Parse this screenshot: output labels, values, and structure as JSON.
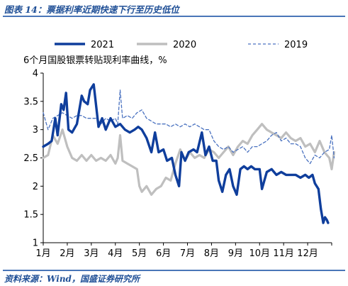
{
  "figure": {
    "title": "图表 14：票据利率近期快速下行至历史低位",
    "source": "资料来源：Wind，国盛证券研究所"
  },
  "chart_data": {
    "type": "line",
    "ylabel": "6个月国股银票转贴现利率曲线，%",
    "ylim": [
      1,
      4
    ],
    "yticks": [
      "4",
      "3.5",
      "3",
      "2.5",
      "2",
      "1.5",
      "1"
    ],
    "xlabels": [
      "1月",
      "2月",
      "3月",
      "4月",
      "5月",
      "6月",
      "7月",
      "8月",
      "9月",
      "10月",
      "11月",
      "12月"
    ],
    "legend_position": "top",
    "grid": false,
    "series": [
      {
        "name": "2021",
        "color": "#0f3e9c",
        "style": "solid-thick",
        "points": [
          [
            0,
            2.7
          ],
          [
            0.2,
            2.75
          ],
          [
            0.35,
            2.8
          ],
          [
            0.5,
            3.2
          ],
          [
            0.6,
            2.9
          ],
          [
            0.75,
            3.45
          ],
          [
            0.85,
            3.35
          ],
          [
            0.95,
            3.65
          ],
          [
            1.05,
            3.0
          ],
          [
            1.2,
            2.95
          ],
          [
            1.4,
            3.1
          ],
          [
            1.6,
            3.6
          ],
          [
            1.7,
            3.5
          ],
          [
            1.85,
            3.45
          ],
          [
            1.95,
            3.7
          ],
          [
            2.1,
            3.8
          ],
          [
            2.3,
            3.05
          ],
          [
            2.45,
            3.2
          ],
          [
            2.6,
            3.0
          ],
          [
            2.8,
            3.2
          ],
          [
            3.0,
            3.05
          ],
          [
            3.2,
            3.1
          ],
          [
            3.4,
            3.0
          ],
          [
            3.6,
            2.95
          ],
          [
            3.8,
            3.0
          ],
          [
            3.95,
            3.05
          ],
          [
            4.1,
            3.0
          ],
          [
            4.3,
            2.85
          ],
          [
            4.5,
            2.6
          ],
          [
            4.65,
            2.95
          ],
          [
            4.8,
            2.6
          ],
          [
            5.0,
            2.65
          ],
          [
            5.15,
            2.45
          ],
          [
            5.35,
            2.5
          ],
          [
            5.5,
            2.2
          ],
          [
            5.65,
            2.0
          ],
          [
            5.75,
            2.6
          ],
          [
            5.9,
            2.45
          ],
          [
            6.05,
            2.6
          ],
          [
            6.25,
            2.65
          ],
          [
            6.4,
            2.6
          ],
          [
            6.6,
            2.95
          ],
          [
            6.75,
            2.55
          ],
          [
            6.9,
            2.7
          ],
          [
            7.05,
            2.45
          ],
          [
            7.2,
            2.45
          ],
          [
            7.3,
            2.1
          ],
          [
            7.45,
            1.9
          ],
          [
            7.6,
            2.2
          ],
          [
            7.75,
            2.3
          ],
          [
            7.9,
            2.0
          ],
          [
            8.05,
            1.85
          ],
          [
            8.2,
            2.3
          ],
          [
            8.35,
            2.35
          ],
          [
            8.5,
            2.3
          ],
          [
            8.65,
            2.35
          ],
          [
            8.8,
            2.3
          ],
          [
            9.0,
            2.3
          ],
          [
            9.1,
            1.95
          ],
          [
            9.3,
            2.25
          ],
          [
            9.5,
            2.3
          ],
          [
            9.7,
            2.2
          ],
          [
            9.9,
            2.25
          ],
          [
            10.1,
            2.2
          ],
          [
            10.3,
            2.2
          ],
          [
            10.5,
            2.2
          ],
          [
            10.7,
            2.15
          ],
          [
            10.9,
            2.2
          ],
          [
            11.05,
            2.15
          ],
          [
            11.2,
            2.2
          ],
          [
            11.3,
            2.05
          ],
          [
            11.45,
            1.95
          ],
          [
            11.55,
            1.6
          ],
          [
            11.65,
            1.35
          ],
          [
            11.72,
            1.45
          ],
          [
            11.8,
            1.4
          ],
          [
            11.85,
            1.35
          ]
        ]
      },
      {
        "name": "2020",
        "color": "#bfbfbf",
        "style": "solid",
        "points": [
          [
            0,
            2.5
          ],
          [
            0.2,
            2.55
          ],
          [
            0.4,
            2.9
          ],
          [
            0.6,
            2.75
          ],
          [
            0.8,
            3.0
          ],
          [
            1.0,
            2.7
          ],
          [
            1.2,
            2.5
          ],
          [
            1.4,
            2.45
          ],
          [
            1.6,
            2.55
          ],
          [
            1.8,
            2.45
          ],
          [
            2.0,
            2.55
          ],
          [
            2.2,
            2.45
          ],
          [
            2.4,
            2.5
          ],
          [
            2.6,
            2.45
          ],
          [
            2.8,
            2.55
          ],
          [
            3.0,
            2.4
          ],
          [
            3.1,
            2.5
          ],
          [
            3.2,
            2.9
          ],
          [
            3.3,
            2.45
          ],
          [
            3.5,
            2.4
          ],
          [
            3.7,
            2.35
          ],
          [
            3.9,
            2.3
          ],
          [
            4.0,
            2.0
          ],
          [
            4.1,
            1.9
          ],
          [
            4.3,
            2.0
          ],
          [
            4.5,
            1.85
          ],
          [
            4.7,
            1.95
          ],
          [
            4.9,
            2.0
          ],
          [
            5.1,
            2.15
          ],
          [
            5.3,
            2.1
          ],
          [
            5.5,
            2.4
          ],
          [
            5.7,
            2.65
          ],
          [
            5.9,
            2.45
          ],
          [
            6.1,
            2.6
          ],
          [
            6.3,
            2.5
          ],
          [
            6.5,
            2.55
          ],
          [
            6.7,
            2.5
          ],
          [
            6.9,
            2.65
          ],
          [
            7.1,
            2.6
          ],
          [
            7.3,
            2.5
          ],
          [
            7.5,
            2.6
          ],
          [
            7.7,
            2.7
          ],
          [
            7.9,
            2.55
          ],
          [
            8.1,
            2.7
          ],
          [
            8.3,
            2.8
          ],
          [
            8.5,
            2.75
          ],
          [
            8.7,
            2.9
          ],
          [
            8.9,
            3.0
          ],
          [
            9.1,
            3.1
          ],
          [
            9.3,
            3.0
          ],
          [
            9.5,
            2.95
          ],
          [
            9.7,
            2.9
          ],
          [
            9.9,
            2.85
          ],
          [
            10.1,
            2.95
          ],
          [
            10.3,
            2.85
          ],
          [
            10.5,
            2.8
          ],
          [
            10.7,
            2.85
          ],
          [
            10.9,
            2.7
          ],
          [
            11.1,
            2.75
          ],
          [
            11.3,
            2.6
          ],
          [
            11.5,
            2.8
          ],
          [
            11.7,
            2.6
          ],
          [
            11.9,
            2.5
          ],
          [
            12.0,
            2.3
          ],
          [
            12.1,
            2.6
          ]
        ]
      },
      {
        "name": "2019",
        "color": "#4a72c0",
        "style": "dashed",
        "points": [
          [
            0,
            3.3
          ],
          [
            0.2,
            3.0
          ],
          [
            0.4,
            3.2
          ],
          [
            0.6,
            3.25
          ],
          [
            0.8,
            3.3
          ],
          [
            1.0,
            3.25
          ],
          [
            1.2,
            3.2
          ],
          [
            1.4,
            3.25
          ],
          [
            1.6,
            3.25
          ],
          [
            1.8,
            3.2
          ],
          [
            2.0,
            3.2
          ],
          [
            2.2,
            3.2
          ],
          [
            2.4,
            3.1
          ],
          [
            2.6,
            3.2
          ],
          [
            2.8,
            3.15
          ],
          [
            3.0,
            3.2
          ],
          [
            3.1,
            3.1
          ],
          [
            3.2,
            3.7
          ],
          [
            3.3,
            3.2
          ],
          [
            3.5,
            3.25
          ],
          [
            3.7,
            3.2
          ],
          [
            3.9,
            3.3
          ],
          [
            4.1,
            3.35
          ],
          [
            4.3,
            3.2
          ],
          [
            4.5,
            3.15
          ],
          [
            4.7,
            3.1
          ],
          [
            4.9,
            3.1
          ],
          [
            5.1,
            3.1
          ],
          [
            5.3,
            3.05
          ],
          [
            5.5,
            3.1
          ],
          [
            5.7,
            3.05
          ],
          [
            5.9,
            3.1
          ],
          [
            6.1,
            3.05
          ],
          [
            6.3,
            3.1
          ],
          [
            6.5,
            3.05
          ],
          [
            6.7,
            3.0
          ],
          [
            6.9,
            3.0
          ],
          [
            7.1,
            2.8
          ],
          [
            7.3,
            2.7
          ],
          [
            7.5,
            2.65
          ],
          [
            7.7,
            2.7
          ],
          [
            7.9,
            2.6
          ],
          [
            8.1,
            2.65
          ],
          [
            8.3,
            2.7
          ],
          [
            8.5,
            2.6
          ],
          [
            8.7,
            2.7
          ],
          [
            8.9,
            2.7
          ],
          [
            9.1,
            2.75
          ],
          [
            9.3,
            2.8
          ],
          [
            9.5,
            2.9
          ],
          [
            9.7,
            2.95
          ],
          [
            9.9,
            2.8
          ],
          [
            10.1,
            2.85
          ],
          [
            10.3,
            2.75
          ],
          [
            10.5,
            2.75
          ],
          [
            10.7,
            2.7
          ],
          [
            10.9,
            2.5
          ],
          [
            11.1,
            2.4
          ],
          [
            11.3,
            2.55
          ],
          [
            11.5,
            2.5
          ],
          [
            11.7,
            2.6
          ],
          [
            11.9,
            2.65
          ],
          [
            12.0,
            2.9
          ],
          [
            12.1,
            2.5
          ]
        ]
      }
    ]
  }
}
